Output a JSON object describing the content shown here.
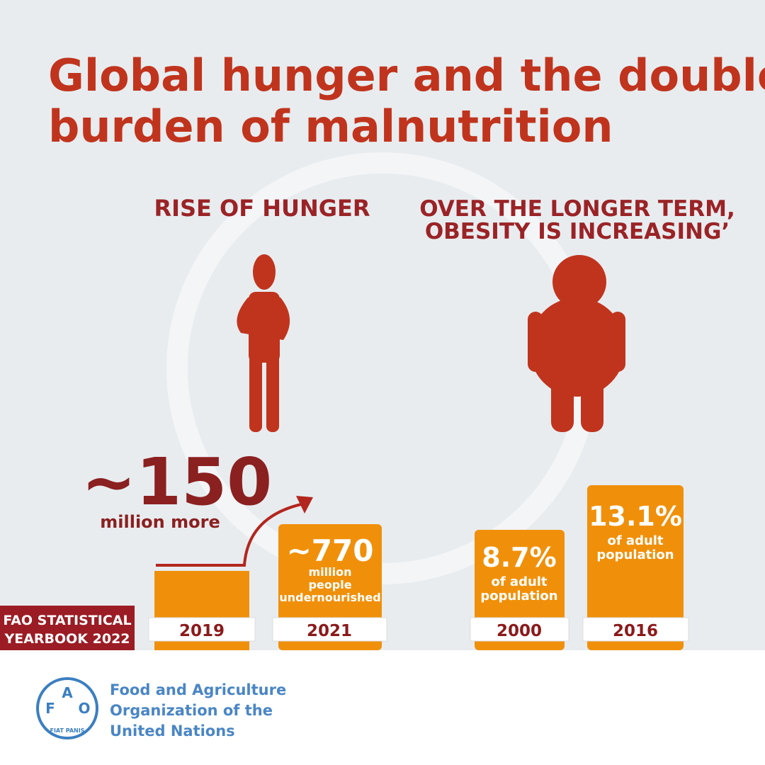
{
  "title": [
    "Global hunger and the double",
    "burden of malnutrition"
  ],
  "hunger": {
    "heading": "RISE OF HUNGER",
    "increase": "~150",
    "increase_label": "million more",
    "bars": [
      {
        "year": "2019"
      },
      {
        "year": "2021",
        "value": "~770",
        "label": [
          "million",
          "people",
          "undernourished"
        ]
      }
    ]
  },
  "obesity": {
    "heading": [
      "OVER THE LONGER TERM,",
      "OBESITY IS INCREASING’"
    ],
    "bars": [
      {
        "year": "2000",
        "value": "8.7%",
        "label": [
          "of adult",
          "population"
        ]
      },
      {
        "year": "2016",
        "value": "13.1%",
        "label": [
          "of adult",
          "population"
        ]
      }
    ]
  },
  "badge": [
    "FAO STATISTICAL",
    "YEARBOOK 2022"
  ],
  "logo": {
    "letters": [
      "F",
      "A",
      "O"
    ],
    "motto": "FIAT PANIS",
    "org": [
      "Food and Agriculture",
      "Organization of the",
      "United Nations"
    ]
  }
}
